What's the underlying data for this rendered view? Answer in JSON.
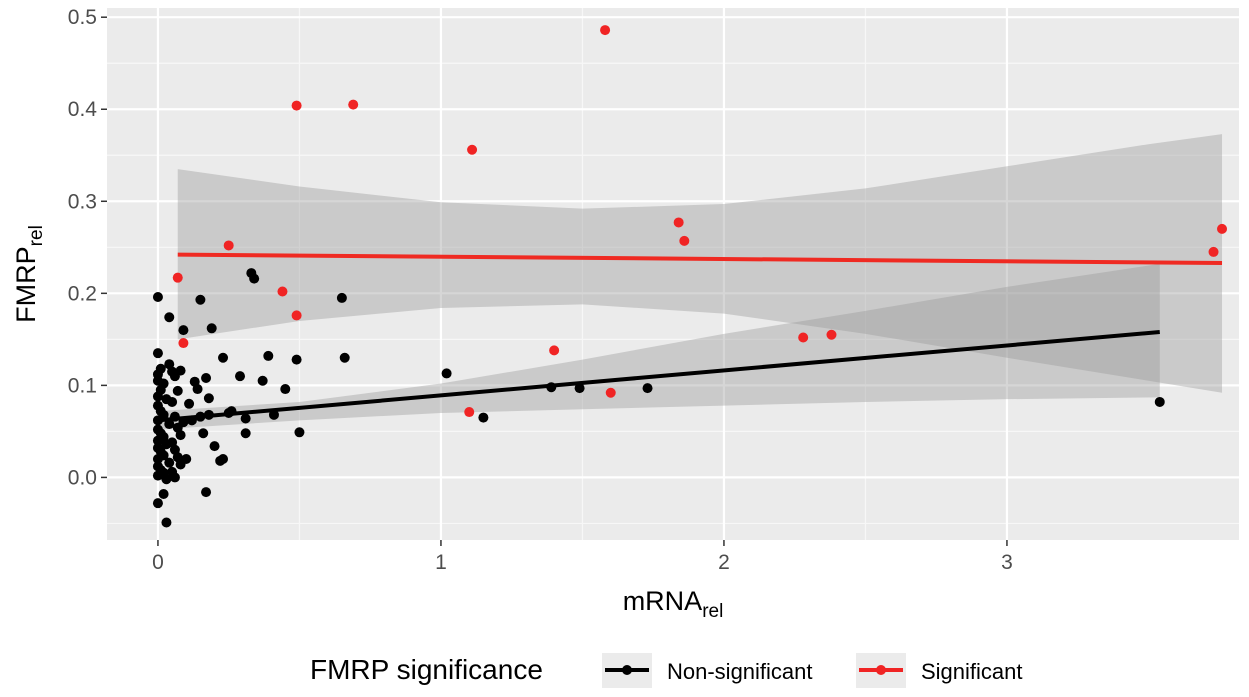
{
  "chart_data": {
    "type": "scatter",
    "xlabel": "mRNA",
    "xlabel_sub": "rel",
    "ylabel": "FMRP",
    "ylabel_sub": "rel",
    "xlim": [
      -0.18,
      3.82
    ],
    "ylim": [
      -0.068,
      0.51
    ],
    "x_ticks": [
      0,
      1,
      2,
      3
    ],
    "x_tick_labels": [
      "0",
      "1",
      "2",
      "3"
    ],
    "y_ticks": [
      0.0,
      0.1,
      0.2,
      0.3,
      0.4,
      0.5
    ],
    "y_tick_labels": [
      "0.0",
      "0.1",
      "0.2",
      "0.3",
      "0.4",
      "0.5"
    ],
    "grid": true,
    "legend_position": "bottom",
    "legend_title": "FMRP significance",
    "series": [
      {
        "name": "Non-significant",
        "color": "#000000",
        "points": [
          [
            0.0,
            0.196
          ],
          [
            0.0,
            0.135
          ],
          [
            0.01,
            0.118
          ],
          [
            0.0,
            0.112
          ],
          [
            0.0,
            0.105
          ],
          [
            0.02,
            0.102
          ],
          [
            0.01,
            0.095
          ],
          [
            0.0,
            0.088
          ],
          [
            0.03,
            0.085
          ],
          [
            0.0,
            0.078
          ],
          [
            0.01,
            0.072
          ],
          [
            0.02,
            0.068
          ],
          [
            0.0,
            0.062
          ],
          [
            0.04,
            0.058
          ],
          [
            0.0,
            0.052
          ],
          [
            0.01,
            0.048
          ],
          [
            0.02,
            0.044
          ],
          [
            0.0,
            0.04
          ],
          [
            0.03,
            0.036
          ],
          [
            0.0,
            0.032
          ],
          [
            0.01,
            0.028
          ],
          [
            0.02,
            0.024
          ],
          [
            0.0,
            0.02
          ],
          [
            0.04,
            0.016
          ],
          [
            0.0,
            0.012
          ],
          [
            0.01,
            0.008
          ],
          [
            0.02,
            0.005
          ],
          [
            0.0,
            0.002
          ],
          [
            0.03,
            -0.002
          ],
          [
            0.0,
            -0.028
          ],
          [
            0.02,
            -0.018
          ],
          [
            0.03,
            -0.049
          ],
          [
            0.04,
            0.123
          ],
          [
            0.05,
            0.115
          ],
          [
            0.06,
            0.11
          ],
          [
            0.07,
            0.094
          ],
          [
            0.05,
            0.082
          ],
          [
            0.06,
            0.066
          ],
          [
            0.07,
            0.054
          ],
          [
            0.08,
            0.046
          ],
          [
            0.05,
            0.038
          ],
          [
            0.06,
            0.03
          ],
          [
            0.07,
            0.022
          ],
          [
            0.08,
            0.014
          ],
          [
            0.05,
            0.006
          ],
          [
            0.06,
            0.0
          ],
          [
            0.04,
            0.174
          ],
          [
            0.08,
            0.116
          ],
          [
            0.09,
            0.06
          ],
          [
            0.1,
            0.02
          ],
          [
            0.11,
            0.08
          ],
          [
            0.12,
            0.062
          ],
          [
            0.09,
            0.16
          ],
          [
            0.13,
            0.104
          ],
          [
            0.14,
            0.096
          ],
          [
            0.15,
            0.193
          ],
          [
            0.15,
            0.066
          ],
          [
            0.16,
            0.048
          ],
          [
            0.17,
            -0.016
          ],
          [
            0.17,
            0.108
          ],
          [
            0.18,
            0.068
          ],
          [
            0.18,
            0.086
          ],
          [
            0.19,
            0.162
          ],
          [
            0.2,
            0.034
          ],
          [
            0.22,
            0.018
          ],
          [
            0.23,
            0.02
          ],
          [
            0.23,
            0.13
          ],
          [
            0.25,
            0.07
          ],
          [
            0.26,
            0.072
          ],
          [
            0.29,
            0.11
          ],
          [
            0.31,
            0.064
          ],
          [
            0.31,
            0.048
          ],
          [
            0.33,
            0.222
          ],
          [
            0.34,
            0.216
          ],
          [
            0.37,
            0.105
          ],
          [
            0.39,
            0.132
          ],
          [
            0.41,
            0.068
          ],
          [
            0.45,
            0.096
          ],
          [
            0.49,
            0.128
          ],
          [
            0.5,
            0.049
          ],
          [
            0.65,
            0.195
          ],
          [
            0.66,
            0.13
          ],
          [
            1.02,
            0.113
          ],
          [
            1.15,
            0.065
          ],
          [
            1.39,
            0.098
          ],
          [
            1.49,
            0.097
          ],
          [
            1.73,
            0.097
          ],
          [
            3.54,
            0.082
          ]
        ],
        "trend": {
          "x": [
            0.0,
            3.54
          ],
          "y": [
            0.062,
            0.158
          ]
        },
        "band_upper": [
          [
            0.0,
            0.072
          ],
          [
            0.5,
            0.082
          ],
          [
            1.0,
            0.102
          ],
          [
            1.5,
            0.128
          ],
          [
            2.0,
            0.156
          ],
          [
            2.5,
            0.181
          ],
          [
            3.0,
            0.207
          ],
          [
            3.54,
            0.232
          ]
        ],
        "band_lower": [
          [
            0.0,
            0.052
          ],
          [
            0.5,
            0.062
          ],
          [
            1.0,
            0.07
          ],
          [
            1.5,
            0.074
          ],
          [
            2.0,
            0.078
          ],
          [
            2.5,
            0.082
          ],
          [
            3.0,
            0.085
          ],
          [
            3.54,
            0.087
          ]
        ]
      },
      {
        "name": "Significant",
        "color": "#f02424",
        "points": [
          [
            0.07,
            0.217
          ],
          [
            0.09,
            0.146
          ],
          [
            0.25,
            0.252
          ],
          [
            0.44,
            0.202
          ],
          [
            0.49,
            0.404
          ],
          [
            0.49,
            0.176
          ],
          [
            0.69,
            0.405
          ],
          [
            1.1,
            0.071
          ],
          [
            1.11,
            0.356
          ],
          [
            1.4,
            0.138
          ],
          [
            1.58,
            0.486
          ],
          [
            1.6,
            0.092
          ],
          [
            1.84,
            0.277
          ],
          [
            1.86,
            0.257
          ],
          [
            2.28,
            0.152
          ],
          [
            2.38,
            0.155
          ],
          [
            3.73,
            0.245
          ],
          [
            3.76,
            0.27
          ]
        ],
        "trend": {
          "x": [
            0.07,
            3.76
          ],
          "y": [
            0.242,
            0.233
          ]
        },
        "band_upper": [
          [
            0.07,
            0.335
          ],
          [
            0.5,
            0.316
          ],
          [
            1.0,
            0.299
          ],
          [
            1.5,
            0.292
          ],
          [
            2.0,
            0.297
          ],
          [
            2.5,
            0.314
          ],
          [
            3.0,
            0.338
          ],
          [
            3.5,
            0.362
          ],
          [
            3.76,
            0.373
          ]
        ],
        "band_lower": [
          [
            0.07,
            0.15
          ],
          [
            0.5,
            0.17
          ],
          [
            1.0,
            0.184
          ],
          [
            1.5,
            0.188
          ],
          [
            2.0,
            0.178
          ],
          [
            2.5,
            0.156
          ],
          [
            3.0,
            0.13
          ],
          [
            3.5,
            0.105
          ],
          [
            3.76,
            0.092
          ]
        ]
      }
    ]
  }
}
